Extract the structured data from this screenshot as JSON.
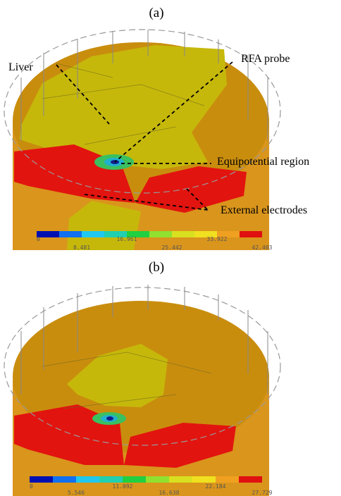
{
  "panels": [
    {
      "label": "(a)",
      "annotations": [
        "Liver",
        "RFA probe",
        "Equipotential region",
        "External electrodes"
      ],
      "colorbar_ticks": [
        0,
        8.481,
        16.961,
        25.442,
        33.922,
        42.403
      ]
    },
    {
      "label": "(b)",
      "colorbar_ticks": [
        0,
        5.546,
        11.092,
        16.638,
        22.184,
        27.729
      ]
    }
  ]
}
